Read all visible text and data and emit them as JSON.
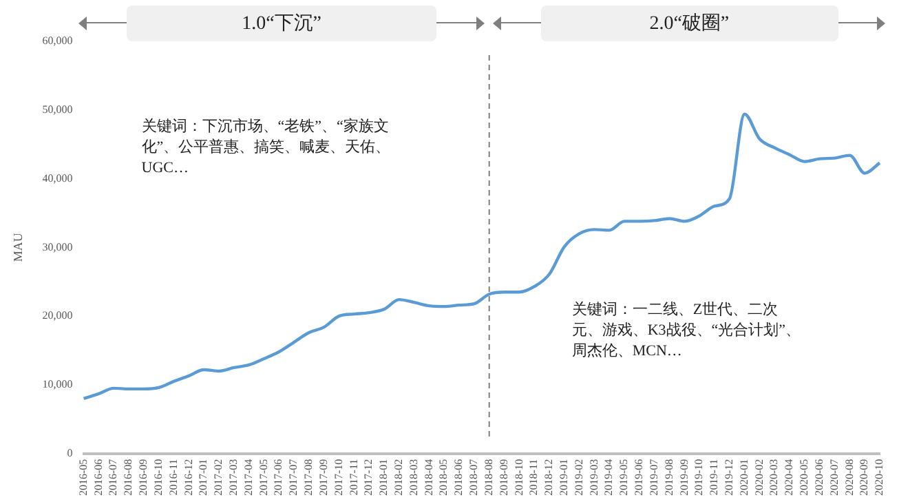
{
  "chart_data": {
    "type": "line",
    "ylabel": "MAU",
    "categories": [
      "2016-05",
      "2016-06",
      "2016-07",
      "2016-08",
      "2016-09",
      "2016-10",
      "2016-11",
      "2016-12",
      "2017-01",
      "2017-02",
      "2017-03",
      "2017-04",
      "2017-05",
      "2017-06",
      "2017-07",
      "2017-08",
      "2017-09",
      "2017-10",
      "2017-11",
      "2017-12",
      "2018-01",
      "2018-02",
      "2018-03",
      "2018-04",
      "2018-05",
      "2018-06",
      "2018-07",
      "2018-08",
      "2018-09",
      "2018-10",
      "2018-11",
      "2018-12",
      "2019-01",
      "2019-02",
      "2019-03",
      "2019-04",
      "2019-05",
      "2019-06",
      "2019-07",
      "2019-08",
      "2019-09",
      "2019-10",
      "2019-11",
      "2019-12",
      "2020-01",
      "2020-02",
      "2020-03",
      "2020-04",
      "2020-05",
      "2020-06",
      "2020-07",
      "2020-08",
      "2020-09",
      "2020-10"
    ],
    "series": [
      {
        "color": "#5b9bd5",
        "values": [
          8000,
          8700,
          9500,
          9400,
          9400,
          9600,
          10500,
          11300,
          12200,
          12000,
          12500,
          12900,
          13800,
          14800,
          16200,
          17600,
          18400,
          20000,
          20300,
          20500,
          21000,
          22400,
          22000,
          21500,
          21400,
          21600,
          21800,
          23200,
          23500,
          23500,
          24300,
          26100,
          30100,
          32000,
          32600,
          32500,
          33800,
          33800,
          33900,
          34200,
          33800,
          34600,
          36000,
          37100,
          49400,
          45800,
          44500,
          43500,
          42500,
          42900,
          43000,
          43400,
          40800,
          42300
        ]
      }
    ],
    "ylim": [
      0,
      60000
    ],
    "yticks": [
      {
        "value": 0,
        "label": "0"
      },
      {
        "value": 10000,
        "label": "10,000"
      },
      {
        "value": 20000,
        "label": "20,000"
      },
      {
        "value": 30000,
        "label": "30,000"
      },
      {
        "value": 40000,
        "label": "40,000"
      },
      {
        "value": 50000,
        "label": "50,000"
      },
      {
        "value": 60000,
        "label": "60,000"
      }
    ],
    "ref_lines": [
      {
        "axis": "x",
        "value": "2018-08",
        "color": "#7f7f7f",
        "line_style": "dashed"
      }
    ],
    "annotations": [
      "1.0“下沉”",
      "2.0“破圈”",
      "关键词：下沉市场、“老铁”、“家族文化”、公平普惠、搞笑、喊麦、天佑、UGC…",
      "关键词：一二线、Z世代、二次元、游戏、K3战役、“光合计划”、周杰伦、MCN…"
    ],
    "grid": false,
    "legend": false,
    "marker": "none",
    "line_style": "solid"
  }
}
